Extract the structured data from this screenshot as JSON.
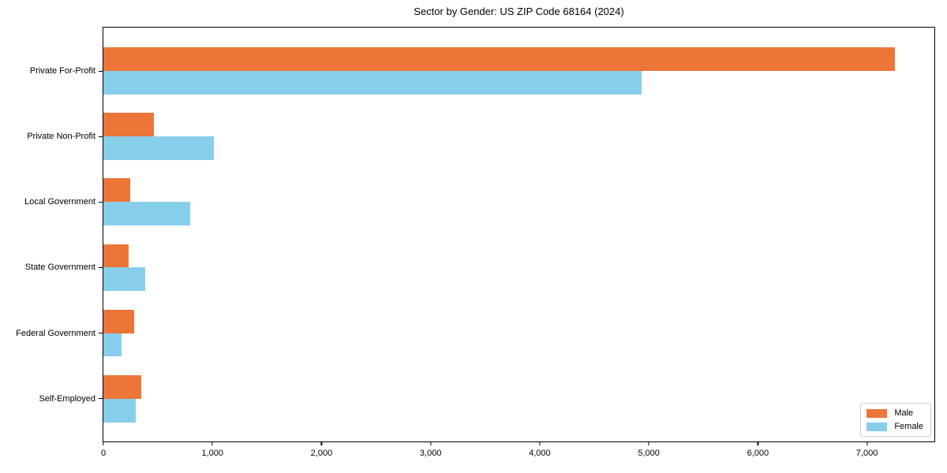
{
  "chart_data": {
    "type": "bar",
    "orientation": "horizontal",
    "title": "Sector by Gender: US ZIP Code 68164 (2024)",
    "categories": [
      "Private For-Profit",
      "Private Non-Profit",
      "Local Government",
      "State Government",
      "Federal Government",
      "Self-Employed"
    ],
    "series": [
      {
        "name": "Male",
        "color": "#ec7538",
        "values": [
          7255,
          465,
          245,
          230,
          285,
          350
        ]
      },
      {
        "name": "Female",
        "color": "#87ceeb",
        "values": [
          4935,
          1015,
          795,
          380,
          170,
          300
        ]
      }
    ],
    "x_ticks": [
      0,
      1000,
      2000,
      3000,
      4000,
      5000,
      6000,
      7000
    ],
    "x_tick_labels": [
      "0",
      "1,000",
      "2,000",
      "3,000",
      "4,000",
      "5,000",
      "6,000",
      "7,000"
    ],
    "xlim": [
      0,
      7618
    ],
    "grid": false,
    "background_color": "#ffffff",
    "axis_color": "#000000",
    "legend": {
      "position": "lower right",
      "entries": [
        "Male",
        "Female"
      ]
    }
  }
}
